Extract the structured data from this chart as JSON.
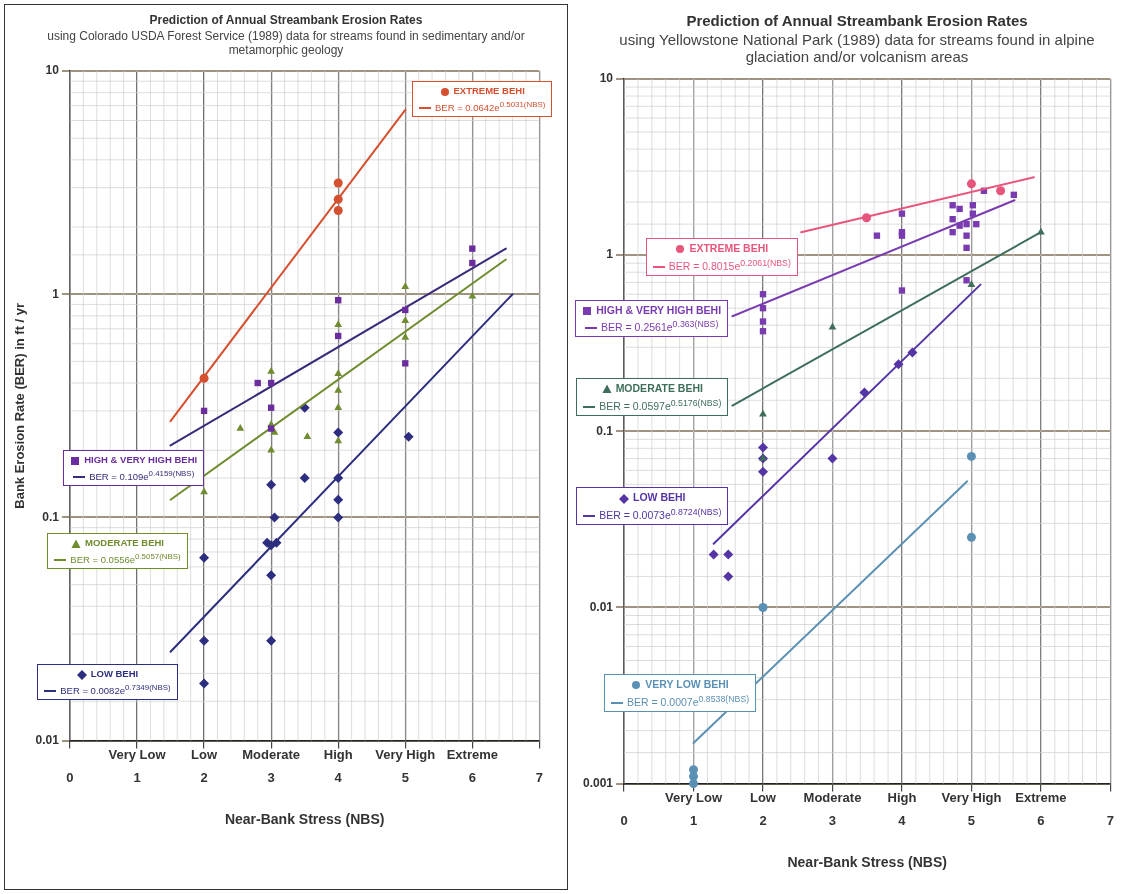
{
  "chart_data": [
    {
      "type": "scatter",
      "title": "Prediction of Annual Streambank Erosion Rates",
      "subtitle": "using Colorado USDA Forest Service (1989) data for streams found in sedimentary and/or metamorphic geology",
      "xlabel": "Near-Bank Stress (NBS)",
      "ylabel": "Bank Erosion Rate (BER) in ft / yr",
      "xlim": [
        0,
        7
      ],
      "xticks": [
        0,
        1,
        2,
        3,
        4,
        5,
        6,
        7
      ],
      "annotations": [
        "Very Low",
        "Low",
        "Moderate",
        "High",
        "Very High",
        "Extreme"
      ],
      "ylim": [
        0.01,
        10
      ],
      "yticks": [
        0.01,
        0.1,
        1,
        10
      ],
      "log": "y",
      "grid": true,
      "legend": "left",
      "series": [
        {
          "name": "EXTREME BEHI",
          "color": "#d4502f",
          "type": "scatter",
          "marker": "circle",
          "x": [
            2,
            4,
            4,
            4
          ],
          "values": [
            0.42,
            3.15,
            2.66,
            2.37
          ]
        },
        {
          "name": "BER = 0.0642e$^{0.5031(NBS)}$",
          "color": "#d4502f",
          "type": "line",
          "marker": "none",
          "x": [
            1.5,
            5
          ],
          "values": [
            0.27,
            6.7
          ]
        },
        {
          "name": "HIGH & VERY HIGH BEHI",
          "color": "#6b2d9e",
          "type": "scatter",
          "marker": "square",
          "x": [
            2,
            2.8,
            3,
            3,
            3,
            4,
            4,
            5,
            5,
            6,
            6
          ],
          "values": [
            0.3,
            0.4,
            0.4,
            0.31,
            0.25,
            0.94,
            0.65,
            0.85,
            0.49,
            1.6,
            1.38
          ]
        },
        {
          "name": "BER = 0.109e$^{0.4159(NBS)}$",
          "color": "#3a2a7a",
          "type": "line",
          "marker": "none",
          "x": [
            1.5,
            6.5
          ],
          "values": [
            0.21,
            1.6
          ]
        },
        {
          "name": "MODERATE BEHI",
          "color": "#6f8c2e",
          "type": "scatter",
          "marker": "triangle",
          "x": [
            2,
            2.54,
            3,
            3,
            3.05,
            3,
            3.54,
            4,
            4,
            4,
            4,
            4,
            5,
            5,
            5,
            6
          ],
          "values": [
            0.13,
            0.25,
            0.45,
            0.26,
            0.24,
            0.2,
            0.23,
            0.73,
            0.44,
            0.37,
            0.31,
            0.22,
            1.08,
            0.76,
            0.64,
            0.98
          ]
        },
        {
          "name": "BER = 0.0556e$^{0.5057(NBS)}$",
          "color": "#6f8c2e",
          "type": "line",
          "marker": "none",
          "x": [
            1.5,
            6.5
          ],
          "values": [
            0.12,
            1.43
          ]
        },
        {
          "name": "LOW BEHI",
          "color": "#2e2e80",
          "type": "scatter",
          "marker": "diamond",
          "x": [
            2,
            2,
            2,
            3,
            3.05,
            2.94,
            3,
            3.08,
            3,
            3,
            3.5,
            3.5,
            4,
            4,
            4,
            4,
            5.05
          ],
          "values": [
            0.066,
            0.028,
            0.018,
            0.14,
            0.1,
            0.077,
            0.075,
            0.077,
            0.055,
            0.028,
            0.31,
            0.15,
            0.24,
            0.15,
            0.12,
            0.1,
            0.23
          ]
        },
        {
          "name": "BER = 0.0082e$^{0.7349(NBS)}$",
          "color": "#2e2e80",
          "type": "line",
          "marker": "none",
          "x": [
            1.5,
            6.6
          ],
          "values": [
            0.025,
            1.0
          ]
        }
      ]
    },
    {
      "type": "scatter",
      "title": "Prediction of Annual Streambank Erosion Rates",
      "subtitle": "using Yellowstone National Park (1989) data for streams found in alpine glaciation and/or volcanism areas",
      "xlabel": "Near-Bank Stress (NBS)",
      "xlim": [
        0,
        7
      ],
      "xticks": [
        0,
        1,
        2,
        3,
        4,
        5,
        6,
        7
      ],
      "annotations": [
        "Very Low",
        "Low",
        "Moderate",
        "High",
        "Very High",
        "Extreme"
      ],
      "ylim": [
        0.001,
        10
      ],
      "yticks": [
        0.001,
        0.01,
        0.1,
        1,
        10
      ],
      "log": "y",
      "grid": true,
      "legend": "left",
      "series": [
        {
          "name": "EXTREME BEHI",
          "color": "#e8557c",
          "type": "scatter",
          "marker": "circle",
          "x": [
            3.49,
            5,
            5.42
          ],
          "values": [
            1.63,
            2.54,
            2.32
          ]
        },
        {
          "name": "BER = 0.8015e$^{0.2061(NBS)}$",
          "color": "#e8557c",
          "type": "line",
          "marker": "none",
          "x": [
            2.55,
            5.9
          ],
          "values": [
            1.35,
            2.77
          ]
        },
        {
          "name": "HIGH & VERY HIGH BEHI",
          "color": "#7a3bb0",
          "type": "scatter",
          "marker": "square",
          "x": [
            3.64,
            4,
            4,
            4,
            4,
            2,
            2,
            2,
            2,
            4.73,
            4.83,
            5.02,
            4.73,
            4.73,
            4.83,
            4.93,
            4.93,
            5.02,
            5.07,
            4.93,
            4.93,
            5.18,
            5.61
          ],
          "values": [
            1.29,
            1.72,
            1.35,
            1.29,
            0.63,
            0.6,
            0.5,
            0.42,
            0.37,
            1.92,
            1.83,
            1.92,
            1.6,
            1.35,
            1.47,
            1.5,
            1.29,
            1.72,
            1.5,
            1.1,
            0.72,
            2.32,
            2.2
          ]
        },
        {
          "name": "BER = 0.2561e$^{0.363(NBS)}$",
          "color": "#7a3bb0",
          "type": "line",
          "marker": "none",
          "x": [
            1.56,
            5.62
          ],
          "values": [
            0.45,
            2.05
          ]
        },
        {
          "name": "MODERATE BEHI",
          "color": "#3e6e5a",
          "type": "scatter",
          "marker": "triangle",
          "x": [
            2,
            2,
            3,
            5,
            6
          ],
          "values": [
            0.125,
            0.07,
            0.39,
            0.68,
            1.35
          ]
        },
        {
          "name": "BER = 0.0597e$^{0.5176(NBS)}$",
          "color": "#3e6e5a",
          "type": "line",
          "marker": "none",
          "x": [
            1.56,
            6
          ],
          "values": [
            0.14,
            1.35
          ]
        },
        {
          "name": "LOW BEHI",
          "color": "#5535a5",
          "type": "scatter",
          "marker": "diamond",
          "x": [
            1.29,
            1.5,
            1.5,
            2,
            2,
            2,
            3,
            3.46,
            3.95,
            4.15
          ],
          "values": [
            0.02,
            0.02,
            0.015,
            0.081,
            0.07,
            0.059,
            0.07,
            0.166,
            0.24,
            0.28
          ]
        },
        {
          "name": "BER = 0.0073e$^{0.8724(NBS)}$",
          "color": "#5535a5",
          "type": "line",
          "marker": "none",
          "x": [
            1.29,
            5.13
          ],
          "values": [
            0.023,
            0.68
          ]
        },
        {
          "name": "VERY LOW BEHI",
          "color": "#5b90b5",
          "type": "scatter",
          "marker": "circle",
          "x": [
            1,
            1,
            1,
            2,
            5,
            5
          ],
          "values": [
            0.0012,
            0.0011,
            0.001,
            0.01,
            0.072,
            0.025
          ]
        },
        {
          "name": "BER = 0.0007e$^{0.8538(NBS)}$",
          "color": "#5b90b5",
          "type": "line",
          "marker": "none",
          "x": [
            1,
            4.94
          ],
          "values": [
            0.0017,
            0.052
          ]
        }
      ]
    }
  ]
}
